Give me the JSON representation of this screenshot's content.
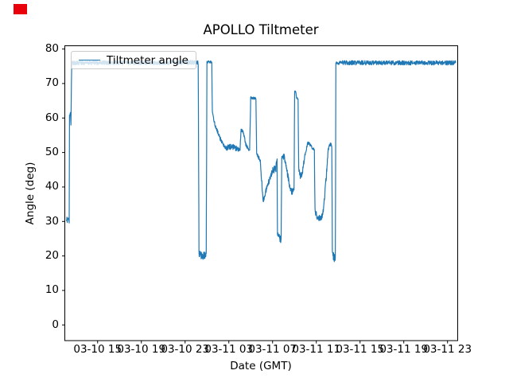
{
  "chart_data": {
    "type": "line",
    "title": "APOLLO Tiltmeter",
    "xlabel": "Date (GMT)",
    "ylabel": "Angle (deg)",
    "legend": [
      "Tiltmeter angle"
    ],
    "legend_position": "upper left",
    "grid": false,
    "line_color": "#1f77b4",
    "axis_color": "#000000",
    "legend_edge_color": "#cccccc",
    "red_marker_color": "#e8000b",
    "x_tick_labels": [
      "03-10 15",
      "03-10 19",
      "03-10 23",
      "03-11 03",
      "03-11 07",
      "03-11 11",
      "03-11 15",
      "03-11 19",
      "03-11 23"
    ],
    "x_tick_hours": [
      3,
      7,
      11,
      15,
      19,
      23,
      27,
      31,
      35
    ],
    "xlim_hours": [
      0,
      35.93
    ],
    "y_ticks": [
      0,
      10,
      20,
      30,
      40,
      50,
      60,
      70,
      80
    ],
    "ylim": [
      -4.55,
      80.95
    ],
    "series": [
      {
        "name": "Tiltmeter angle",
        "anchors_t_deg_noise": [
          [
            0.15,
            31.0,
            1.1
          ],
          [
            0.4,
            30.3,
            1.1
          ],
          [
            0.43,
            61.0,
            0.4
          ],
          [
            0.52,
            61.3,
            0.4
          ],
          [
            0.56,
            58.0,
            0.1
          ],
          [
            0.63,
            76.0,
            0.6
          ],
          [
            8.0,
            76.0,
            0.6
          ],
          [
            11.4,
            76.2,
            0.8
          ],
          [
            12.2,
            76.0,
            0.6
          ],
          [
            12.27,
            20.5,
            0.9
          ],
          [
            12.55,
            20.0,
            1.3
          ],
          [
            12.93,
            20.3,
            1.0
          ],
          [
            13.0,
            76.3,
            0.35
          ],
          [
            13.44,
            76.3,
            0.35
          ],
          [
            13.49,
            61.9,
            0.2
          ],
          [
            13.7,
            58.3,
            0.5
          ],
          [
            14.0,
            55.8,
            0.5
          ],
          [
            14.3,
            53.3,
            0.6
          ],
          [
            14.75,
            51.3,
            0.7
          ],
          [
            15.3,
            51.8,
            0.9
          ],
          [
            15.8,
            51.0,
            0.7
          ],
          [
            16.02,
            50.6,
            0.4
          ],
          [
            16.12,
            56.8,
            0.5
          ],
          [
            16.35,
            55.6,
            0.5
          ],
          [
            16.55,
            52.3,
            0.5
          ],
          [
            16.9,
            50.4,
            0.5
          ],
          [
            17.0,
            66.0,
            0.35
          ],
          [
            17.48,
            65.6,
            0.35
          ],
          [
            17.54,
            49.6,
            0.4
          ],
          [
            17.88,
            47.6,
            0.7
          ],
          [
            18.02,
            41.0,
            0.9
          ],
          [
            18.14,
            35.8,
            0.7
          ],
          [
            18.35,
            38.5,
            0.8
          ],
          [
            18.7,
            42.0,
            0.8
          ],
          [
            19.0,
            44.8,
            0.9
          ],
          [
            19.3,
            45.6,
            1.3
          ],
          [
            19.41,
            48.2,
            0.3
          ],
          [
            19.45,
            26.3,
            1.1
          ],
          [
            19.78,
            24.6,
            1.1
          ],
          [
            19.84,
            48.4,
            0.5
          ],
          [
            20.05,
            48.8,
            0.9
          ],
          [
            20.3,
            45.0,
            0.8
          ],
          [
            20.52,
            41.0,
            0.8
          ],
          [
            20.68,
            38.6,
            0.9
          ],
          [
            20.96,
            38.9,
            0.9
          ],
          [
            21.02,
            68.0,
            0.25
          ],
          [
            21.12,
            67.4,
            0.25
          ],
          [
            21.2,
            65.8,
            0.25
          ],
          [
            21.33,
            65.5,
            0.25
          ],
          [
            21.39,
            45.4,
            0.5
          ],
          [
            21.56,
            42.8,
            1.3
          ],
          [
            21.75,
            44.6,
            0.8
          ],
          [
            21.95,
            49.2,
            0.6
          ],
          [
            22.12,
            51.4,
            0.5
          ],
          [
            22.2,
            52.9,
            0.5
          ],
          [
            22.55,
            51.8,
            0.5
          ],
          [
            22.82,
            50.6,
            0.4
          ],
          [
            22.88,
            33.2,
            0.7
          ],
          [
            23.1,
            31.0,
            1.1
          ],
          [
            23.55,
            31.4,
            1.1
          ],
          [
            23.68,
            34.4,
            0.5
          ],
          [
            23.83,
            40.0,
            1.0
          ],
          [
            23.98,
            46.0,
            1.0
          ],
          [
            24.1,
            51.3,
            0.7
          ],
          [
            24.28,
            52.7,
            0.7
          ],
          [
            24.42,
            51.4,
            0.4
          ],
          [
            24.47,
            21.0,
            0.9
          ],
          [
            24.6,
            19.6,
            1.3
          ],
          [
            24.74,
            19.3,
            1.0
          ],
          [
            24.79,
            76.0,
            0.65
          ],
          [
            30.0,
            76.0,
            0.65
          ],
          [
            35.74,
            76.0,
            0.65
          ]
        ]
      }
    ]
  }
}
